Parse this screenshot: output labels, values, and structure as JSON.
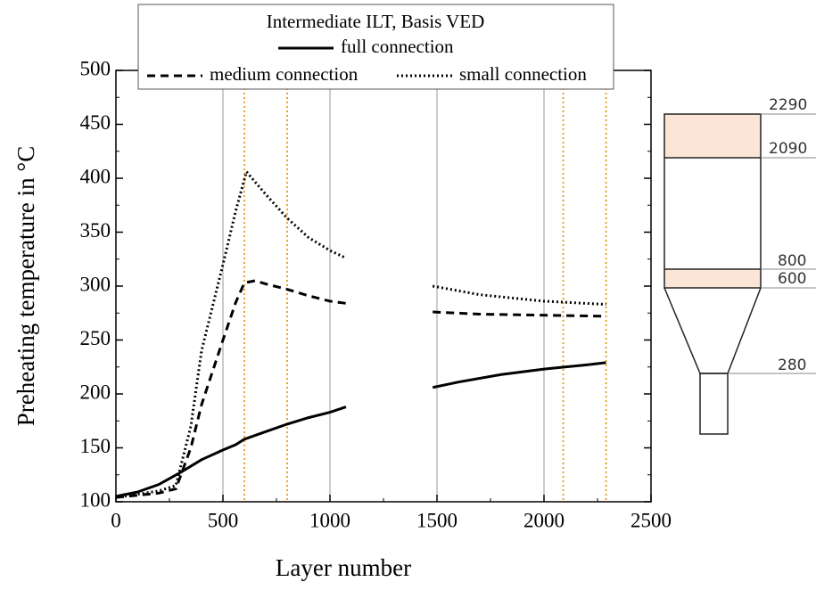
{
  "chart_data": {
    "type": "line",
    "legend_title": "Intermediate ILT, Basis VED",
    "xlabel": "Layer number",
    "ylabel": "Preheating temperature in °C",
    "xlim": [
      0,
      2500
    ],
    "xticks": [
      0,
      500,
      1000,
      1500,
      2000,
      2500
    ],
    "ylim": [
      100,
      500
    ],
    "yticks": [
      100,
      150,
      200,
      250,
      300,
      350,
      400,
      450,
      500
    ],
    "grid": true,
    "vlines": [
      600,
      800,
      2090,
      2290
    ],
    "vline_color": "#f0a030",
    "series": [
      {
        "name": "full connection",
        "color": "#000000",
        "style": "solid",
        "x": [
          0,
          50,
          100,
          200,
          300,
          400,
          500,
          560,
          600,
          700,
          800,
          900,
          1000,
          1075,
          null,
          1480,
          1600,
          1800,
          2000,
          2200,
          2290
        ],
        "values": [
          105,
          107,
          109,
          116,
          127,
          139,
          148,
          153,
          158,
          165,
          172,
          178,
          183,
          188,
          null,
          206,
          211,
          218,
          223,
          227,
          229
        ]
      },
      {
        "name": "medium connection",
        "color": "#000000",
        "style": "dashed",
        "x": [
          0,
          100,
          200,
          280,
          350,
          400,
          500,
          560,
          600,
          650,
          700,
          800,
          900,
          1000,
          1075,
          null,
          1480,
          1700,
          2000,
          2290
        ],
        "values": [
          104,
          106,
          108,
          112,
          150,
          190,
          250,
          285,
          303,
          305,
          302,
          297,
          291,
          286,
          284,
          null,
          276,
          274,
          273,
          272
        ]
      },
      {
        "name": "small connection",
        "color": "#000000",
        "style": "dotted",
        "x": [
          0,
          200,
          280,
          350,
          400,
          500,
          560,
          610,
          700,
          800,
          900,
          1000,
          1075,
          null,
          1480,
          1700,
          2000,
          2290
        ],
        "values": [
          104,
          110,
          115,
          170,
          240,
          320,
          370,
          406,
          385,
          363,
          345,
          333,
          326,
          null,
          300,
          292,
          286,
          283
        ]
      }
    ]
  },
  "diagram": {
    "labels": [
      "2290",
      "2090",
      "800",
      "600",
      "280"
    ]
  }
}
